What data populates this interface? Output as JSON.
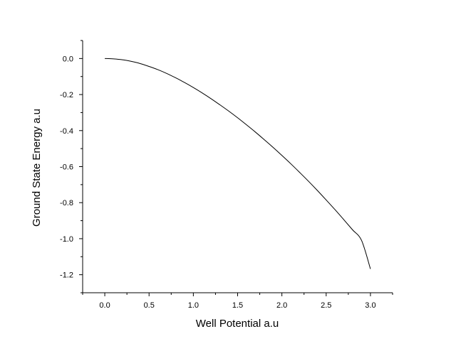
{
  "chart_data": {
    "type": "line",
    "title": "",
    "xlabel": "Well Potential a.u",
    "ylabel": "Ground State Energy a.u",
    "xlim": [
      -0.25,
      3.25
    ],
    "ylim": [
      -1.3,
      0.1
    ],
    "x_ticks": [
      0.0,
      0.5,
      1.0,
      1.5,
      2.0,
      2.5,
      3.0
    ],
    "x_tick_labels": [
      "0.0",
      "0.5",
      "1.0",
      "1.5",
      "2.0",
      "2.5",
      "3.0"
    ],
    "y_ticks": [
      0.0,
      -0.2,
      -0.4,
      -0.6,
      -0.8,
      -1.0,
      -1.2
    ],
    "y_tick_labels": [
      "0.0",
      "-0.2",
      "-0.4",
      "-0.6",
      "-0.8",
      "-1.0",
      "-1.2"
    ],
    "grid": false,
    "legend": "none",
    "series": [
      {
        "color": "#000000",
        "x": [
          0.0,
          0.1,
          0.2,
          0.3,
          0.4,
          0.5,
          0.6,
          0.7,
          0.8,
          0.9,
          1.0,
          1.1,
          1.2,
          1.3,
          1.4,
          1.5,
          1.6,
          1.7,
          1.8,
          1.9,
          2.0,
          2.1,
          2.2,
          2.3,
          2.4,
          2.5,
          2.6,
          2.7,
          2.8,
          2.9,
          3.0
        ],
        "y": [
          0.0,
          -0.002,
          -0.007,
          -0.016,
          -0.028,
          -0.044,
          -0.062,
          -0.083,
          -0.107,
          -0.133,
          -0.161,
          -0.191,
          -0.223,
          -0.257,
          -0.292,
          -0.329,
          -0.368,
          -0.408,
          -0.45,
          -0.493,
          -0.538,
          -0.584,
          -0.632,
          -0.681,
          -0.732,
          -0.785,
          -0.839,
          -0.895,
          -0.952,
          -1.01,
          -1.168
        ]
      }
    ]
  }
}
